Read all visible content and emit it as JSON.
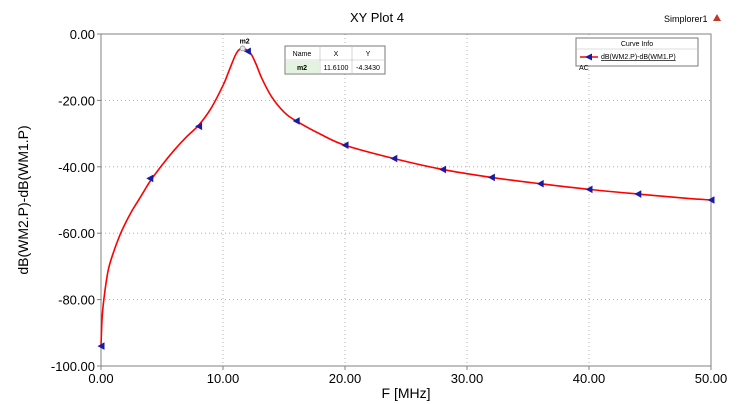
{
  "chart_data": {
    "type": "line",
    "title": "XY Plot 4",
    "source_label": "Simplorer1",
    "xlabel": "F [MHz]",
    "ylabel": "dB(WM2.P)-dB(WM1.P)",
    "xlim": [
      0,
      50
    ],
    "ylim": [
      -100,
      0
    ],
    "x_ticks": [
      "0.00",
      "10.00",
      "20.00",
      "30.00",
      "40.00",
      "50.00"
    ],
    "y_ticks": [
      "0.00",
      "-20.00",
      "-40.00",
      "-60.00",
      "-80.00",
      "-100.00"
    ],
    "grid": true,
    "series": [
      {
        "name": "dB(WM2.P)-dB(WM1.P)",
        "color": "#ff0000",
        "marker_color": "#1a1aa6",
        "x": [
          0.0,
          0.1,
          0.3,
          0.6,
          1.0,
          1.5,
          2.0,
          2.5,
          3.0,
          3.5,
          4.0,
          5.0,
          6.0,
          7.0,
          8.0,
          9.0,
          10.0,
          10.5,
          11.0,
          11.3,
          11.61,
          11.9,
          12.3,
          12.7,
          13.2,
          14.0,
          15.0,
          16.0,
          18.0,
          20.0,
          24.0,
          28.0,
          32.0,
          36.0,
          40.0,
          44.0,
          48.0,
          50.0
        ],
        "y": [
          -94.0,
          -85.0,
          -78.0,
          -71.0,
          -66.0,
          -61.0,
          -57.0,
          -53.5,
          -50.5,
          -47.5,
          -44.5,
          -39.5,
          -35.0,
          -31.0,
          -27.5,
          -22.5,
          -15.5,
          -11.0,
          -6.5,
          -4.8,
          -4.343,
          -4.7,
          -6.0,
          -9.0,
          -13.5,
          -19.0,
          -23.5,
          -26.2,
          -30.2,
          -33.5,
          -37.5,
          -40.8,
          -43.2,
          -45.1,
          -46.8,
          -48.2,
          -49.5,
          -50.0
        ],
        "marker_x": [
          0.0,
          4.0,
          8.0,
          12.0,
          16.0,
          20.0,
          24.0,
          28.0,
          32.0,
          36.0,
          40.0,
          44.0,
          50.0
        ],
        "marker_y": [
          -94.0,
          -43.5,
          -27.8,
          -5.2,
          -26.2,
          -33.5,
          -37.5,
          -40.8,
          -43.2,
          -45.1,
          -46.8,
          -48.2,
          -50.0
        ]
      }
    ],
    "marker": {
      "label": "m2",
      "x": 11.61,
      "y": -4.343,
      "table_headers": [
        "Name",
        "X",
        "Y"
      ],
      "table_row": [
        "m2",
        "11.6100",
        "-4.3430"
      ]
    },
    "legend": {
      "header": "Curve Info",
      "entries": [
        "dB(WM2.P)-dB(WM1.P)"
      ],
      "sub": "AC",
      "placement": "top-right"
    }
  }
}
